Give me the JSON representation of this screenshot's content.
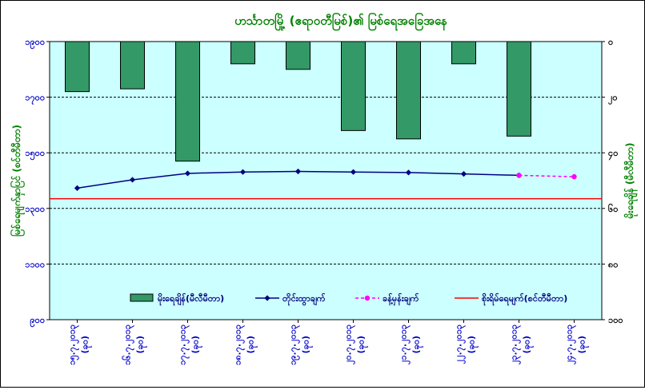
{
  "chart_data": {
    "type": "bar+line",
    "title": "ဟင်္သာတမြို့ (ဧရာဝတီမြစ်)၏ မြစ်ရေအခြေအနေ",
    "ylabel_left": "မြစ်ရေမျက်နှာပြင် (စင်တီမီတာ)",
    "ylabel_right": "မိုးရေချိန် (မီလီမီတာ)",
    "left_axis": {
      "min": 900,
      "max": 1900,
      "ticks": [
        "၉၀၀",
        "၁၁၀၀",
        "၁၃၀၀",
        "၁၅၀၀",
        "၁၇၀၀",
        "၁၉၀၀"
      ]
    },
    "right_axis": {
      "min": 0,
      "max": 100,
      "inverted": true,
      "ticks": [
        "၀",
        "၂၀",
        "၄၀",
        "၆၀",
        "၈၀",
        "၁၀၀"
      ]
    },
    "categories": [
      [
        "၁၅.၇.၂၀၁၃",
        "(ခု၀)"
      ],
      [
        "၁၆.၇.၂၀၁၃",
        "(ခု၀)"
      ],
      [
        "၁၇.၇.၂၀၁၃",
        "(ခု၀)"
      ],
      [
        "၁၈.၇.၂၀၁၃",
        "(ခု၀)"
      ],
      [
        "၁၉.၇.၂၀၁၃",
        "(ခု၀)"
      ],
      [
        "၂၀.၇.၂၀၁၃",
        "(ခု၀)"
      ],
      [
        "၂၁.၇.၂၀၁၃",
        "(ခု၀)"
      ],
      [
        "၂၂.၇.၂၀၁၃",
        "(ခု၀)"
      ],
      [
        "၂၃.၇.၂၀၁၃",
        "(ခု၀)"
      ],
      [
        "၂၄.၇.၂၀၁၃",
        "(ခု၀)"
      ]
    ],
    "series": [
      {
        "name": "မိုးရေချိန်(မီလီမီတာ)",
        "type": "bar",
        "axis": "right",
        "color": "#339966",
        "values": [
          18,
          17,
          43,
          8,
          10,
          32,
          35,
          8,
          34,
          null
        ]
      },
      {
        "name": "တိုင်းထွာချက်",
        "type": "line",
        "axis": "left",
        "color": "#000080",
        "values": [
          1373,
          1403,
          1426,
          1431,
          1433,
          1431,
          1429,
          1424,
          1419,
          null
        ]
      },
      {
        "name": "ခန့်မှန်းချက်",
        "type": "line",
        "axis": "left",
        "color": "#ff00ff",
        "dashed": true,
        "values": [
          null,
          null,
          null,
          null,
          null,
          null,
          null,
          null,
          1419,
          1414
        ]
      },
      {
        "name": "စိုးရိမ်ရေမျက်(စင်တီမီတာ)",
        "type": "line",
        "axis": "left",
        "color": "#ff0000",
        "constant": 1335
      }
    ],
    "grid": true,
    "legend_position": "bottom-inside"
  }
}
